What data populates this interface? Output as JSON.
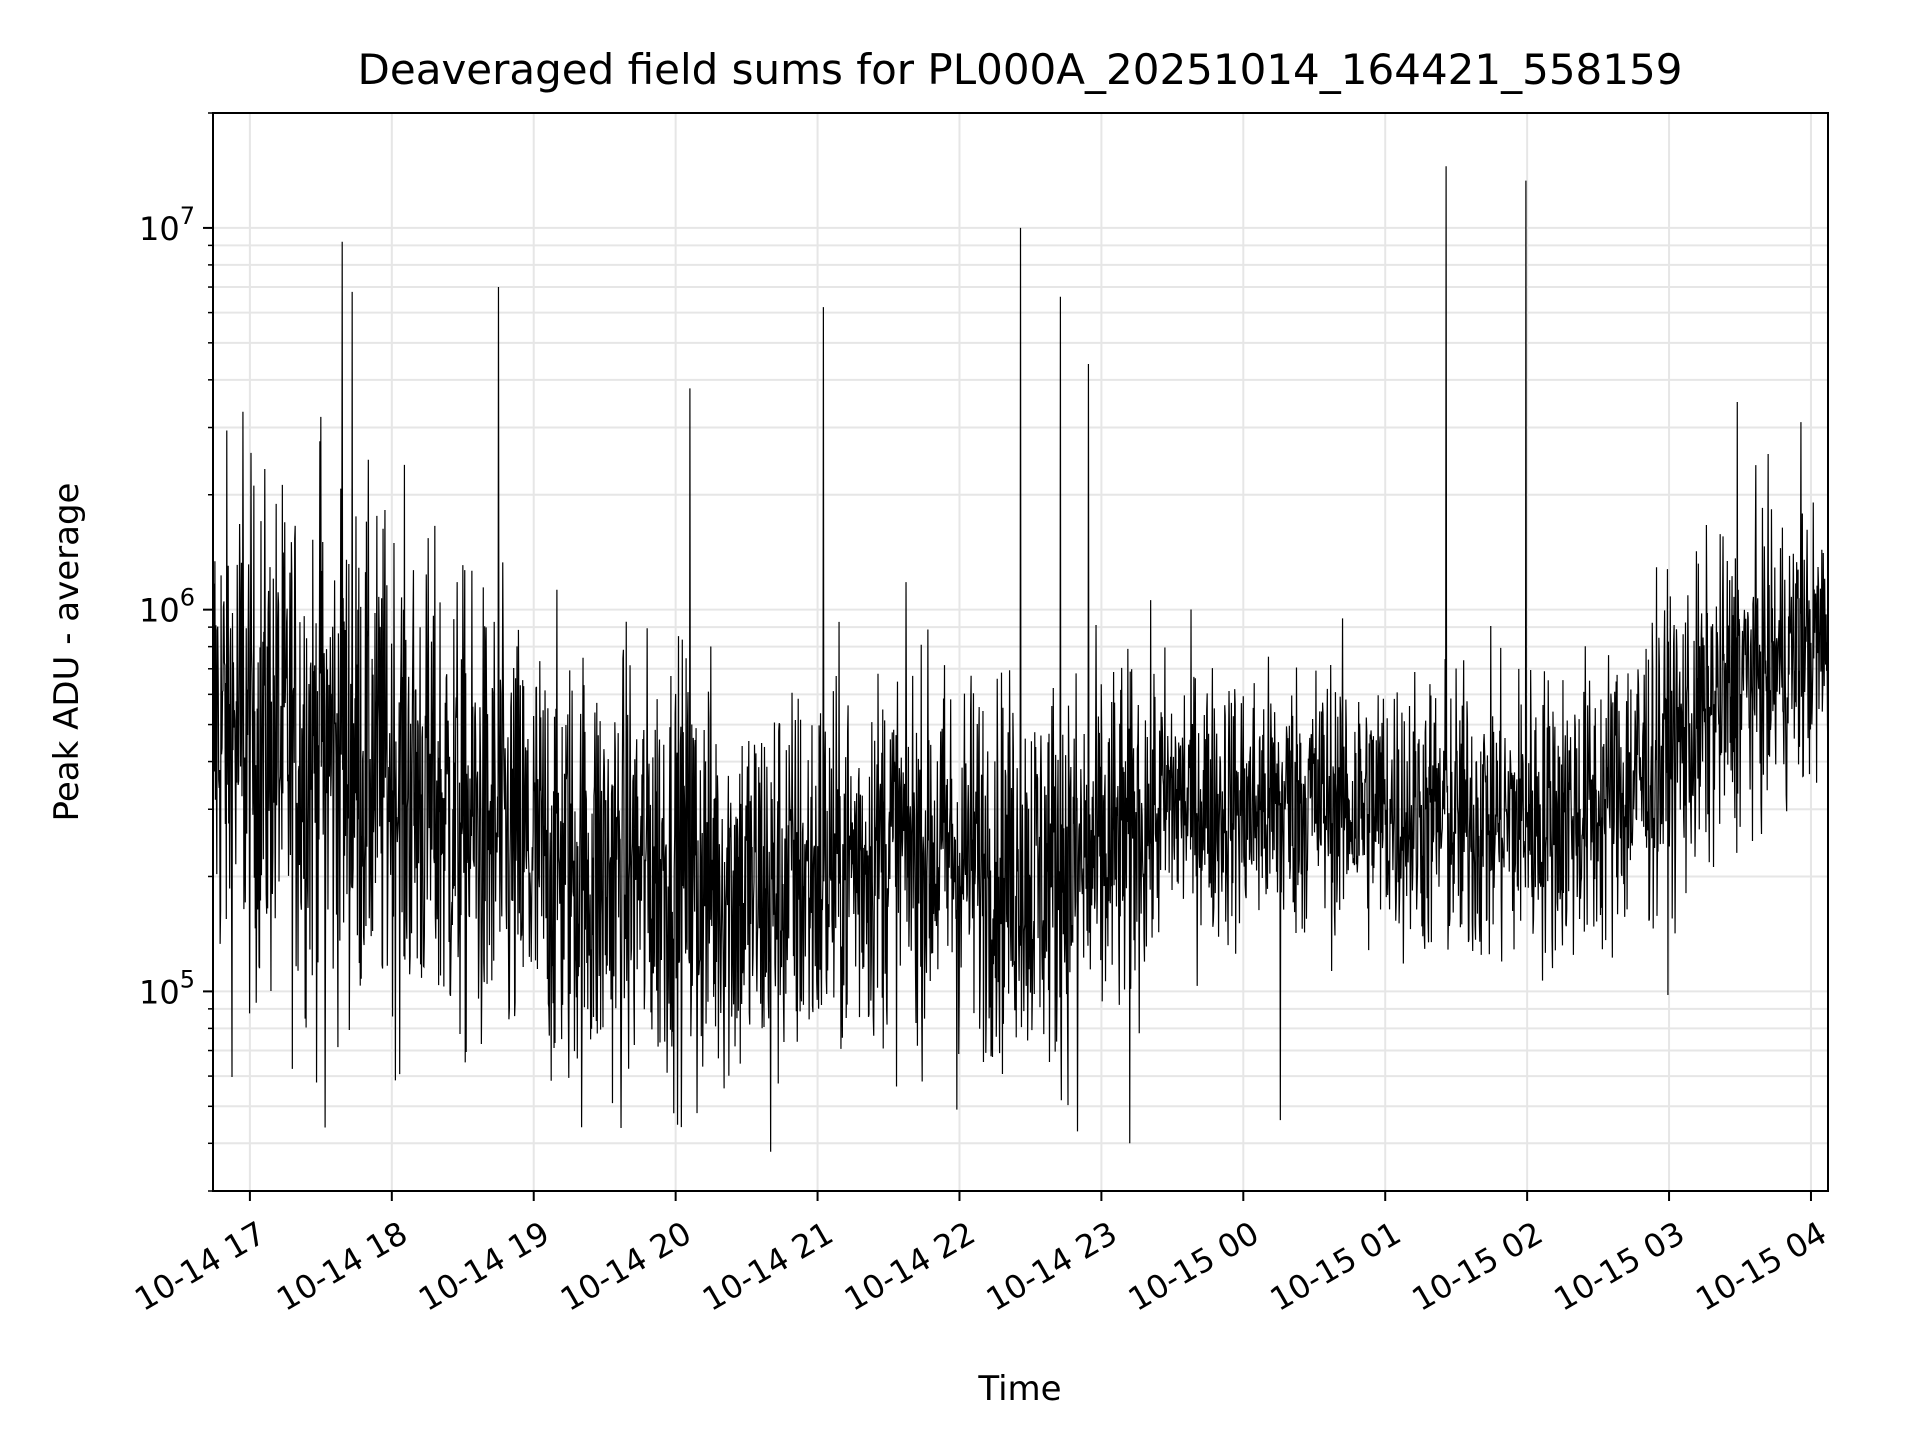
{
  "chart_data": {
    "type": "line",
    "title": "Deaveraged field sums for PL000A_20251014_164421_558159",
    "xlabel": "Time",
    "ylabel": "Peak ADU - average",
    "yscale": "log",
    "ylim": [
      30000,
      20000000
    ],
    "y_ticks": [
      {
        "value": 100000,
        "base": "10",
        "exp": "5"
      },
      {
        "value": 1000000,
        "base": "10",
        "exp": "6"
      },
      {
        "value": 10000000,
        "base": "10",
        "exp": "7"
      }
    ],
    "x_ticks": [
      {
        "hours": 17,
        "label": "10-14 17"
      },
      {
        "hours": 18,
        "label": "10-14 18"
      },
      {
        "hours": 19,
        "label": "10-14 19"
      },
      {
        "hours": 20,
        "label": "10-14 20"
      },
      {
        "hours": 21,
        "label": "10-14 21"
      },
      {
        "hours": 22,
        "label": "10-14 22"
      },
      {
        "hours": 23,
        "label": "10-14 23"
      },
      {
        "hours": 24,
        "label": "10-15 00"
      },
      {
        "hours": 25,
        "label": "10-15 01"
      },
      {
        "hours": 26,
        "label": "10-15 02"
      },
      {
        "hours": 27,
        "label": "10-15 03"
      },
      {
        "hours": 28,
        "label": "10-15 04"
      }
    ],
    "xlim_hours": [
      16.74,
      28.12
    ],
    "grid": true,
    "line_color": "#000000",
    "grid_color": "#e6e6e6",
    "series": [
      {
        "name": "deaveraged field sum",
        "note": "dense noisy time series; baseline envelope sampled hourly, notable spikes listed",
        "baseline": [
          {
            "hours": 16.74,
            "median": 500000,
            "spread": 3.2
          },
          {
            "hours": 17.0,
            "median": 450000,
            "spread": 3.0
          },
          {
            "hours": 17.5,
            "median": 420000,
            "spread": 3.0
          },
          {
            "hours": 18.0,
            "median": 380000,
            "spread": 2.9
          },
          {
            "hours": 18.5,
            "median": 280000,
            "spread": 2.8
          },
          {
            "hours": 19.0,
            "median": 220000,
            "spread": 2.6
          },
          {
            "hours": 19.5,
            "median": 200000,
            "spread": 2.6
          },
          {
            "hours": 20.0,
            "median": 220000,
            "spread": 2.5
          },
          {
            "hours": 20.5,
            "median": 180000,
            "spread": 2.4
          },
          {
            "hours": 21.0,
            "median": 200000,
            "spread": 2.3
          },
          {
            "hours": 21.5,
            "median": 240000,
            "spread": 2.2
          },
          {
            "hours": 22.0,
            "median": 230000,
            "spread": 2.2
          },
          {
            "hours": 22.5,
            "median": 200000,
            "spread": 2.3
          },
          {
            "hours": 23.0,
            "median": 220000,
            "spread": 2.3
          },
          {
            "hours": 23.5,
            "median": 320000,
            "spread": 1.8
          },
          {
            "hours": 24.0,
            "median": 300000,
            "spread": 1.8
          },
          {
            "hours": 24.5,
            "median": 320000,
            "spread": 1.8
          },
          {
            "hours": 25.0,
            "median": 300000,
            "spread": 1.8
          },
          {
            "hours": 25.5,
            "median": 280000,
            "spread": 1.9
          },
          {
            "hours": 26.0,
            "median": 280000,
            "spread": 1.9
          },
          {
            "hours": 26.5,
            "median": 300000,
            "spread": 1.9
          },
          {
            "hours": 27.0,
            "median": 420000,
            "spread": 2.0
          },
          {
            "hours": 27.5,
            "median": 650000,
            "spread": 1.9
          },
          {
            "hours": 28.0,
            "median": 800000,
            "spread": 1.8
          },
          {
            "hours": 28.12,
            "median": 800000,
            "spread": 1.8
          }
        ],
        "spikes": [
          {
            "hours": 17.65,
            "value": 9200000
          },
          {
            "hours": 17.72,
            "value": 6800000
          },
          {
            "hours": 18.75,
            "value": 7000000
          },
          {
            "hours": 20.1,
            "value": 3800000
          },
          {
            "hours": 21.04,
            "value": 6200000
          },
          {
            "hours": 22.43,
            "value": 10000000
          },
          {
            "hours": 22.71,
            "value": 6600000
          },
          {
            "hours": 22.91,
            "value": 4400000
          },
          {
            "hours": 25.43,
            "value": 14500000
          },
          {
            "hours": 25.99,
            "value": 13300000
          },
          {
            "hours": 17.5,
            "value": 3200000
          },
          {
            "hours": 16.95,
            "value": 3300000
          },
          {
            "hours": 27.48,
            "value": 3500000
          },
          {
            "hours": 27.93,
            "value": 3100000
          }
        ],
        "dips": [
          {
            "hours": 17.53,
            "value": 44000
          },
          {
            "hours": 20.67,
            "value": 38000
          },
          {
            "hours": 22.83,
            "value": 43000
          },
          {
            "hours": 23.2,
            "value": 40000
          },
          {
            "hours": 24.26,
            "value": 46000
          },
          {
            "hours": 20.15,
            "value": 48000
          },
          {
            "hours": 21.98,
            "value": 49000
          }
        ]
      }
    ]
  }
}
